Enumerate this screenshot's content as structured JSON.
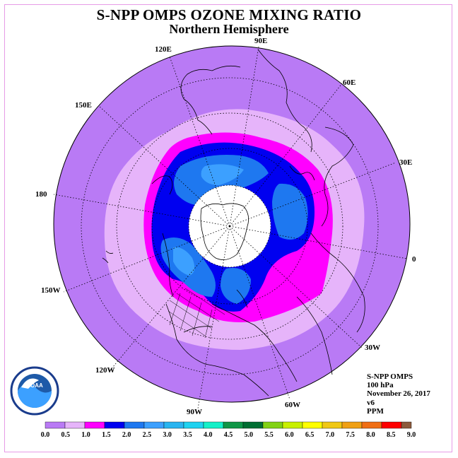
{
  "title": "S-NPP OMPS OZONE MIXING RATIO",
  "subtitle": "Northern Hemisphere",
  "longitude_labels": [
    "90E",
    "60E",
    "30E",
    "0",
    "30W",
    "60W",
    "90W",
    "120W",
    "150W",
    "180",
    "150E",
    "120E"
  ],
  "info": {
    "instrument": "S-NPP OMPS",
    "level": "100 hPa",
    "date": "November 26, 2017",
    "version": "v6",
    "units": "PPM"
  },
  "logo_text": "NOAA",
  "colors": {
    "background_field": "#b97af5",
    "lavender": "#e6b4fa",
    "magenta": "#ff00ff",
    "blue": "#0000f0",
    "mid_blue": "#1e78f0",
    "light_blue": "#3ca0ff",
    "no_data": "#ffffff"
  },
  "colorbar": {
    "ticks": [
      "0.0",
      "0.5",
      "1.0",
      "1.5",
      "2.0",
      "2.5",
      "3.0",
      "3.5",
      "4.0",
      "4.5",
      "5.0",
      "5.5",
      "6.0",
      "6.5",
      "7.0",
      "7.5",
      "8.0",
      "8.5",
      "9.0"
    ],
    "colors": [
      "#b97af5",
      "#e6b4fa",
      "#ff00ff",
      "#0000f0",
      "#1e78f0",
      "#3ca0ff",
      "#28b4f0",
      "#1ed2f0",
      "#14f0c8",
      "#0f9646",
      "#006e32",
      "#82d214",
      "#c8f000",
      "#ffff00",
      "#f0c814",
      "#f0a014",
      "#f06e14",
      "#ff0000",
      "#8c5a3c"
    ]
  }
}
